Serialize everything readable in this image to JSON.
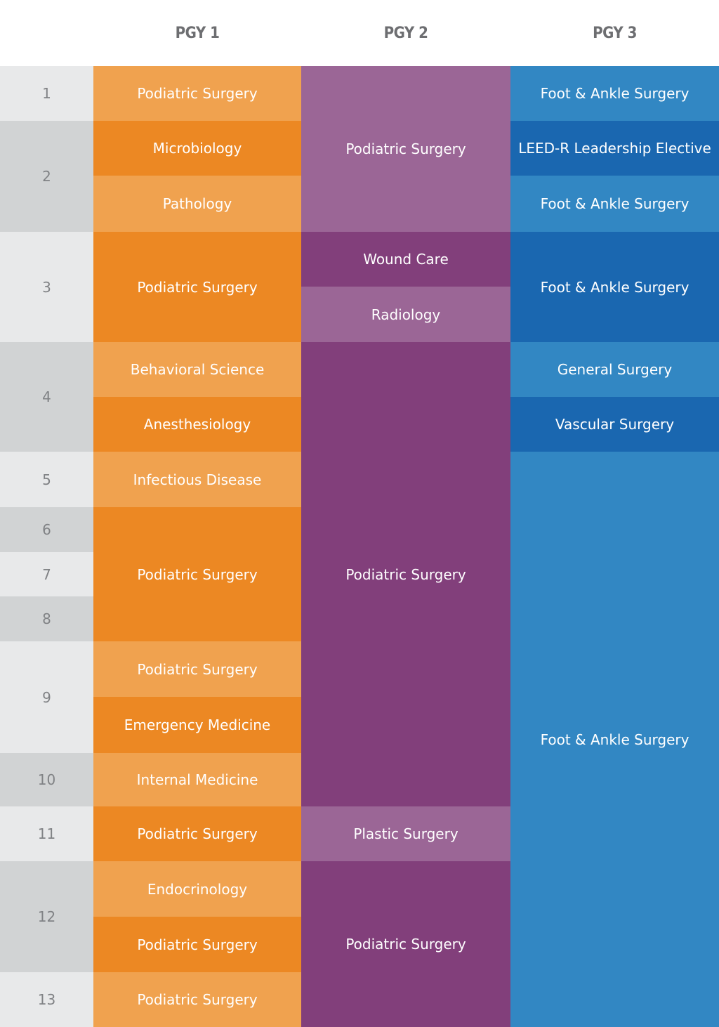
{
  "headers": {
    "pgy1": "PGY 1",
    "pgy2": "PGY 2",
    "pgy3": "PGY 3"
  },
  "blocks": [
    "1",
    "2",
    "3",
    "4",
    "5",
    "6",
    "7",
    "8",
    "9",
    "10",
    "11",
    "12",
    "13"
  ],
  "pgy1": [
    "Podiatric Surgery",
    "Microbiology",
    "Pathology",
    "Podiatric Surgery",
    "Behavioral Science",
    "Anesthesiology",
    "Infectious Disease",
    "Podiatric Surgery",
    "Podiatric Surgery",
    "Emergency Medicine",
    "Internal Medicine",
    "Podiatric Surgery",
    "Endocrinology",
    "Podiatric Surgery",
    "Podiatric Surgery"
  ],
  "pgy2": [
    "Podiatric Surgery",
    "Wound Care",
    "Radiology",
    "Podiatric Surgery",
    "Plastic Surgery",
    "Podiatric Surgery"
  ],
  "pgy3": [
    "Foot & Ankle Surgery",
    "LEED-R Leadership Elective",
    "Foot & Ankle Surgery",
    "Foot & Ankle Surgery",
    "General Surgery",
    "Vascular Surgery",
    "Foot & Ankle Surgery"
  ],
  "colors": {
    "block_light": "#e8e9ea",
    "block_dark": "#d1d3d4",
    "orange_light": "#f0a24f",
    "orange_dark": "#ec8823",
    "purple_light": "#9b6696",
    "purple_dark": "#823f7b",
    "blue_light": "#3287c3",
    "blue_dark": "#1a67b0"
  }
}
